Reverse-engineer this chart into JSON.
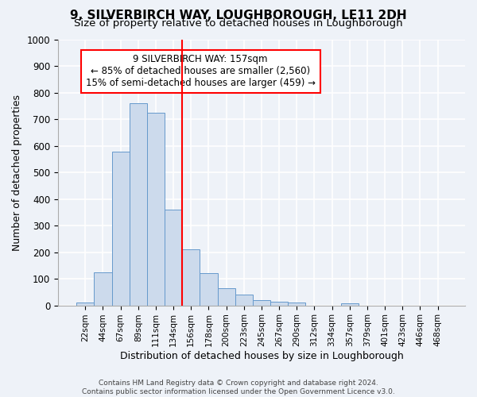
{
  "title": "9, SILVERBIRCH WAY, LOUGHBOROUGH, LE11 2DH",
  "subtitle": "Size of property relative to detached houses in Loughborough",
  "xlabel": "Distribution of detached houses by size in Loughborough",
  "ylabel": "Number of detached properties",
  "bar_labels": [
    "22sqm",
    "44sqm",
    "67sqm",
    "89sqm",
    "111sqm",
    "134sqm",
    "156sqm",
    "178sqm",
    "200sqm",
    "223sqm",
    "245sqm",
    "267sqm",
    "290sqm",
    "312sqm",
    "334sqm",
    "357sqm",
    "379sqm",
    "401sqm",
    "423sqm",
    "446sqm",
    "468sqm"
  ],
  "bar_values": [
    12,
    125,
    578,
    762,
    725,
    360,
    210,
    120,
    65,
    40,
    20,
    15,
    10,
    0,
    0,
    8,
    0,
    0,
    0,
    0,
    0
  ],
  "bar_color": "#ccdaec",
  "bar_edge_color": "#6699cc",
  "property_line_x": 6,
  "property_line_color": "red",
  "annotation_text": "9 SILVERBIRCH WAY: 157sqm\n← 85% of detached houses are smaller (2,560)\n15% of semi-detached houses are larger (459) →",
  "annotation_box_color": "white",
  "annotation_box_edge": "red",
  "ylim": [
    0,
    1000
  ],
  "yticks": [
    0,
    100,
    200,
    300,
    400,
    500,
    600,
    700,
    800,
    900,
    1000
  ],
  "footer1": "Contains HM Land Registry data © Crown copyright and database right 2024.",
  "footer2": "Contains public sector information licensed under the Open Government Licence v3.0.",
  "background_color": "#eef2f8",
  "grid_color": "#ffffff",
  "title_fontsize": 11,
  "subtitle_fontsize": 9.5
}
